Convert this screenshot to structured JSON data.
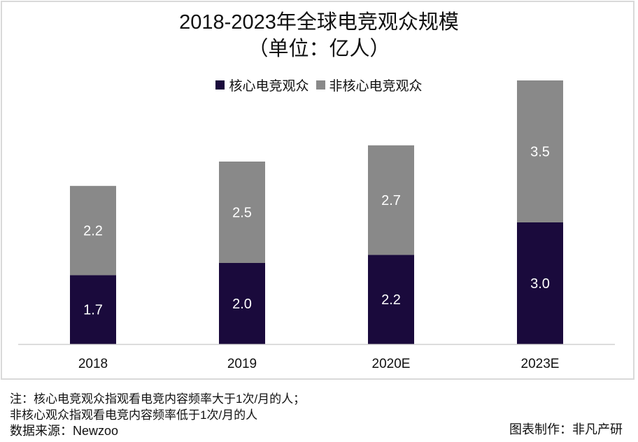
{
  "chart_data": {
    "type": "bar",
    "stacked": true,
    "title": "2018-2023年全球电竞观众规模",
    "subtitle": "（单位：亿人）",
    "categories": [
      "2018",
      "2019",
      "2020E",
      "2023E"
    ],
    "series": [
      {
        "name": "核心电竞观众",
        "values": [
          1.7,
          2.0,
          2.2,
          3.0
        ],
        "color": "#1a0a3c"
      },
      {
        "name": "非核心电竞观众",
        "values": [
          2.2,
          2.5,
          2.7,
          3.5
        ],
        "color": "#898989"
      }
    ],
    "ylim": [
      0,
      6.7
    ],
    "grid": false,
    "legend_position": "top"
  },
  "notes": [
    "注：核心电竞观众指观看电竞内容频率大于1次/月的人；",
    "非核心观众指观看电竞内容频率低于1次/月的人",
    "数据来源：Newzoo"
  ],
  "credit": "图表制作：非凡产研"
}
